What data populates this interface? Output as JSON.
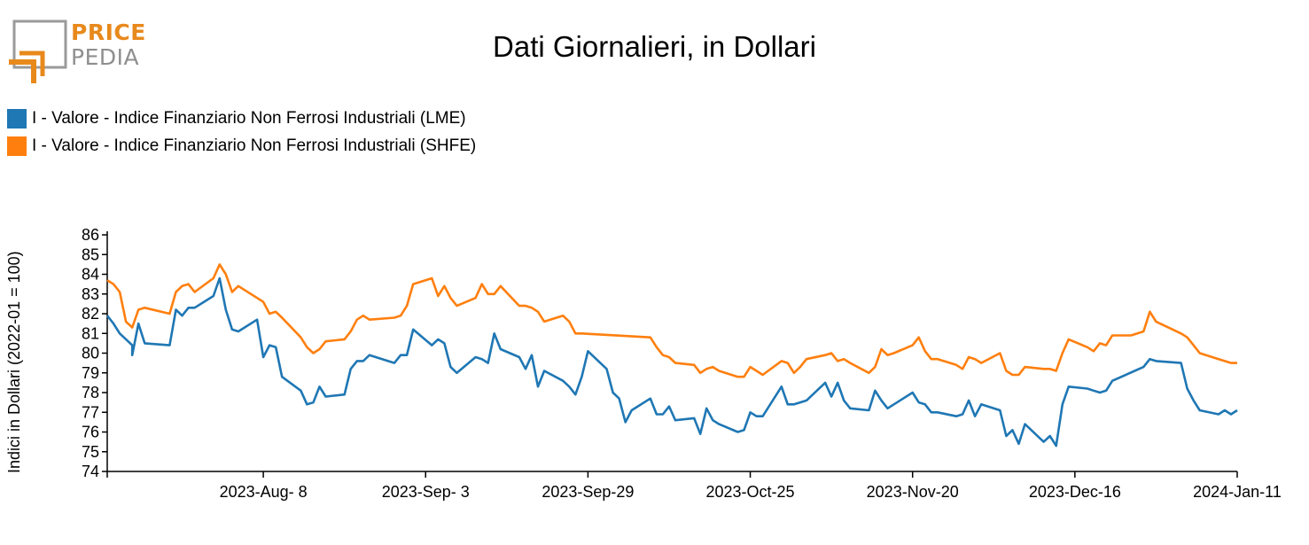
{
  "logo": {
    "word1": "PRICE",
    "word2": "PEDIA"
  },
  "colors": {
    "lme": "#1f77b4",
    "shfe": "#ff7f0e",
    "logo_orange": "#e8891c",
    "logo_gray": "#8f8f8f"
  },
  "chart_data": {
    "type": "line",
    "title": "Dati Giornalieri, in Dollari",
    "ylabel": "Indici in Dollari (2022-01 = 100)",
    "xlabel": "",
    "ylim": [
      74,
      86
    ],
    "yticks": [
      74,
      75,
      76,
      77,
      78,
      79,
      80,
      81,
      82,
      83,
      84,
      85,
      86
    ],
    "xlim": [
      "2023-07-14",
      "2024-01-11"
    ],
    "xticks": [
      {
        "date": "2023-08-08",
        "label": "2023-Aug- 8"
      },
      {
        "date": "2023-09-03",
        "label": "2023-Sep- 3"
      },
      {
        "date": "2023-09-29",
        "label": "2023-Sep-29"
      },
      {
        "date": "2023-10-25",
        "label": "2023-Oct-25"
      },
      {
        "date": "2023-11-20",
        "label": "2023-Nov-20"
      },
      {
        "date": "2023-12-16",
        "label": "2023-Dec-16"
      },
      {
        "date": "2024-01-11",
        "label": "2024-Jan-11"
      }
    ],
    "legend_position": "top-left",
    "series": [
      {
        "name": "I - Valore - Indice Finanziario Non Ferrosi Industriali (LME)",
        "color": "#1f77b4",
        "points": [
          [
            "2023-07-14",
            81.9
          ],
          [
            "2023-07-15",
            81.5
          ],
          [
            "2023-07-16",
            81.0
          ],
          [
            "2023-07-18",
            80.4
          ],
          [
            "2023-07-18",
            79.9
          ],
          [
            "2023-07-19",
            81.5
          ],
          [
            "2023-07-20",
            80.5
          ],
          [
            "2023-07-24",
            80.4
          ],
          [
            "2023-07-25",
            82.2
          ],
          [
            "2023-07-26",
            81.9
          ],
          [
            "2023-07-27",
            82.3
          ],
          [
            "2023-07-28",
            82.3
          ],
          [
            "2023-07-31",
            82.9
          ],
          [
            "2023-08-01",
            83.8
          ],
          [
            "2023-08-02",
            82.2
          ],
          [
            "2023-08-03",
            81.2
          ],
          [
            "2023-08-04",
            81.1
          ],
          [
            "2023-08-07",
            81.7
          ],
          [
            "2023-08-08",
            79.8
          ],
          [
            "2023-08-09",
            80.4
          ],
          [
            "2023-08-10",
            80.3
          ],
          [
            "2023-08-11",
            78.8
          ],
          [
            "2023-08-14",
            78.1
          ],
          [
            "2023-08-15",
            77.4
          ],
          [
            "2023-08-16",
            77.5
          ],
          [
            "2023-08-17",
            78.3
          ],
          [
            "2023-08-18",
            77.8
          ],
          [
            "2023-08-21",
            77.9
          ],
          [
            "2023-08-22",
            79.2
          ],
          [
            "2023-08-23",
            79.6
          ],
          [
            "2023-08-24",
            79.6
          ],
          [
            "2023-08-25",
            79.9
          ],
          [
            "2023-08-29",
            79.5
          ],
          [
            "2023-08-30",
            79.9
          ],
          [
            "2023-08-31",
            79.9
          ],
          [
            "2023-09-01",
            81.2
          ],
          [
            "2023-09-04",
            80.4
          ],
          [
            "2023-09-05",
            80.7
          ],
          [
            "2023-09-06",
            80.5
          ],
          [
            "2023-09-07",
            79.3
          ],
          [
            "2023-09-08",
            79.0
          ],
          [
            "2023-09-11",
            79.8
          ],
          [
            "2023-09-12",
            79.7
          ],
          [
            "2023-09-13",
            79.5
          ],
          [
            "2023-09-14",
            81.0
          ],
          [
            "2023-09-15",
            80.2
          ],
          [
            "2023-09-18",
            79.8
          ],
          [
            "2023-09-19",
            79.2
          ],
          [
            "2023-09-20",
            79.9
          ],
          [
            "2023-09-21",
            78.3
          ],
          [
            "2023-09-22",
            79.1
          ],
          [
            "2023-09-25",
            78.6
          ],
          [
            "2023-09-26",
            78.3
          ],
          [
            "2023-09-27",
            77.9
          ],
          [
            "2023-09-28",
            78.8
          ],
          [
            "2023-09-29",
            80.1
          ],
          [
            "2023-10-02",
            79.2
          ],
          [
            "2023-10-03",
            78.0
          ],
          [
            "2023-10-04",
            77.7
          ],
          [
            "2023-10-05",
            76.5
          ],
          [
            "2023-10-06",
            77.1
          ],
          [
            "2023-10-09",
            77.7
          ],
          [
            "2023-10-10",
            76.9
          ],
          [
            "2023-10-11",
            76.9
          ],
          [
            "2023-10-12",
            77.3
          ],
          [
            "2023-10-13",
            76.6
          ],
          [
            "2023-10-16",
            76.7
          ],
          [
            "2023-10-17",
            75.9
          ],
          [
            "2023-10-18",
            77.2
          ],
          [
            "2023-10-19",
            76.6
          ],
          [
            "2023-10-20",
            76.4
          ],
          [
            "2023-10-23",
            76.0
          ],
          [
            "2023-10-24",
            76.1
          ],
          [
            "2023-10-25",
            77.0
          ],
          [
            "2023-10-26",
            76.8
          ],
          [
            "2023-10-27",
            76.8
          ],
          [
            "2023-10-30",
            78.3
          ],
          [
            "2023-10-31",
            77.4
          ],
          [
            "2023-11-01",
            77.4
          ],
          [
            "2023-11-02",
            77.5
          ],
          [
            "2023-11-03",
            77.6
          ],
          [
            "2023-11-06",
            78.5
          ],
          [
            "2023-11-07",
            77.8
          ],
          [
            "2023-11-08",
            78.5
          ],
          [
            "2023-11-09",
            77.6
          ],
          [
            "2023-11-10",
            77.2
          ],
          [
            "2023-11-13",
            77.1
          ],
          [
            "2023-11-14",
            78.1
          ],
          [
            "2023-11-15",
            77.6
          ],
          [
            "2023-11-16",
            77.2
          ],
          [
            "2023-11-17",
            77.4
          ],
          [
            "2023-11-20",
            78.0
          ],
          [
            "2023-11-21",
            77.5
          ],
          [
            "2023-11-22",
            77.4
          ],
          [
            "2023-11-23",
            77.0
          ],
          [
            "2023-11-24",
            77.0
          ],
          [
            "2023-11-27",
            76.8
          ],
          [
            "2023-11-28",
            76.9
          ],
          [
            "2023-11-29",
            77.6
          ],
          [
            "2023-11-30",
            76.8
          ],
          [
            "2023-12-01",
            77.4
          ],
          [
            "2023-12-04",
            77.1
          ],
          [
            "2023-12-05",
            75.8
          ],
          [
            "2023-12-06",
            76.1
          ],
          [
            "2023-12-07",
            75.4
          ],
          [
            "2023-12-08",
            76.4
          ],
          [
            "2023-12-11",
            75.5
          ],
          [
            "2023-12-12",
            75.8
          ],
          [
            "2023-12-13",
            75.3
          ],
          [
            "2023-12-14",
            77.4
          ],
          [
            "2023-12-15",
            78.3
          ],
          [
            "2023-12-18",
            78.2
          ],
          [
            "2023-12-19",
            78.1
          ],
          [
            "2023-12-20",
            78.0
          ],
          [
            "2023-12-21",
            78.1
          ],
          [
            "2023-12-22",
            78.6
          ],
          [
            "2023-12-27",
            79.3
          ],
          [
            "2023-12-28",
            79.7
          ],
          [
            "2023-12-29",
            79.6
          ],
          [
            "2024-01-02",
            79.5
          ],
          [
            "2024-01-03",
            78.2
          ],
          [
            "2024-01-04",
            77.6
          ],
          [
            "2024-01-05",
            77.1
          ],
          [
            "2024-01-08",
            76.9
          ],
          [
            "2024-01-09",
            77.1
          ],
          [
            "2024-01-10",
            76.9
          ],
          [
            "2024-01-11",
            77.1
          ]
        ]
      },
      {
        "name": "I - Valore - Indice Finanziario Non Ferrosi Industriali (SHFE)",
        "color": "#ff7f0e",
        "points": [
          [
            "2023-07-14",
            83.7
          ],
          [
            "2023-07-15",
            83.5
          ],
          [
            "2023-07-16",
            83.1
          ],
          [
            "2023-07-17",
            81.6
          ],
          [
            "2023-07-18",
            81.3
          ],
          [
            "2023-07-19",
            82.2
          ],
          [
            "2023-07-20",
            82.3
          ],
          [
            "2023-07-24",
            82.0
          ],
          [
            "2023-07-25",
            83.1
          ],
          [
            "2023-07-26",
            83.4
          ],
          [
            "2023-07-27",
            83.5
          ],
          [
            "2023-07-28",
            83.1
          ],
          [
            "2023-07-31",
            83.8
          ],
          [
            "2023-08-01",
            84.5
          ],
          [
            "2023-08-02",
            84.0
          ],
          [
            "2023-08-03",
            83.1
          ],
          [
            "2023-08-04",
            83.4
          ],
          [
            "2023-08-07",
            82.8
          ],
          [
            "2023-08-08",
            82.6
          ],
          [
            "2023-08-09",
            82.0
          ],
          [
            "2023-08-10",
            82.1
          ],
          [
            "2023-08-11",
            81.8
          ],
          [
            "2023-08-14",
            80.8
          ],
          [
            "2023-08-15",
            80.3
          ],
          [
            "2023-08-16",
            80.0
          ],
          [
            "2023-08-17",
            80.2
          ],
          [
            "2023-08-18",
            80.6
          ],
          [
            "2023-08-21",
            80.7
          ],
          [
            "2023-08-22",
            81.1
          ],
          [
            "2023-08-23",
            81.7
          ],
          [
            "2023-08-24",
            81.9
          ],
          [
            "2023-08-25",
            81.7
          ],
          [
            "2023-08-29",
            81.8
          ],
          [
            "2023-08-30",
            81.9
          ],
          [
            "2023-08-31",
            82.4
          ],
          [
            "2023-09-01",
            83.5
          ],
          [
            "2023-09-04",
            83.8
          ],
          [
            "2023-09-05",
            82.9
          ],
          [
            "2023-09-06",
            83.4
          ],
          [
            "2023-09-07",
            82.8
          ],
          [
            "2023-09-08",
            82.4
          ],
          [
            "2023-09-11",
            82.8
          ],
          [
            "2023-09-12",
            83.5
          ],
          [
            "2023-09-13",
            83.0
          ],
          [
            "2023-09-14",
            83.0
          ],
          [
            "2023-09-15",
            83.4
          ],
          [
            "2023-09-18",
            82.4
          ],
          [
            "2023-09-19",
            82.4
          ],
          [
            "2023-09-20",
            82.3
          ],
          [
            "2023-09-21",
            82.1
          ],
          [
            "2023-09-22",
            81.6
          ],
          [
            "2023-09-25",
            81.9
          ],
          [
            "2023-09-26",
            81.6
          ],
          [
            "2023-09-27",
            81.0
          ],
          [
            "2023-09-28",
            81.0
          ],
          [
            "2023-10-09",
            80.8
          ],
          [
            "2023-10-10",
            80.3
          ],
          [
            "2023-10-11",
            79.9
          ],
          [
            "2023-10-12",
            79.8
          ],
          [
            "2023-10-13",
            79.5
          ],
          [
            "2023-10-16",
            79.4
          ],
          [
            "2023-10-17",
            79.0
          ],
          [
            "2023-10-18",
            79.2
          ],
          [
            "2023-10-19",
            79.3
          ],
          [
            "2023-10-20",
            79.1
          ],
          [
            "2023-10-23",
            78.8
          ],
          [
            "2023-10-24",
            78.8
          ],
          [
            "2023-10-25",
            79.3
          ],
          [
            "2023-10-26",
            79.1
          ],
          [
            "2023-10-27",
            78.9
          ],
          [
            "2023-10-30",
            79.6
          ],
          [
            "2023-10-31",
            79.5
          ],
          [
            "2023-11-01",
            79.0
          ],
          [
            "2023-11-02",
            79.3
          ],
          [
            "2023-11-03",
            79.7
          ],
          [
            "2023-11-06",
            79.9
          ],
          [
            "2023-11-07",
            80.0
          ],
          [
            "2023-11-08",
            79.6
          ],
          [
            "2023-11-09",
            79.7
          ],
          [
            "2023-11-10",
            79.5
          ],
          [
            "2023-11-13",
            79.0
          ],
          [
            "2023-11-14",
            79.3
          ],
          [
            "2023-11-15",
            80.2
          ],
          [
            "2023-11-16",
            79.9
          ],
          [
            "2023-11-17",
            80.0
          ],
          [
            "2023-11-20",
            80.4
          ],
          [
            "2023-11-21",
            80.8
          ],
          [
            "2023-11-22",
            80.1
          ],
          [
            "2023-11-23",
            79.7
          ],
          [
            "2023-11-24",
            79.7
          ],
          [
            "2023-11-27",
            79.4
          ],
          [
            "2023-11-28",
            79.2
          ],
          [
            "2023-11-29",
            79.8
          ],
          [
            "2023-11-30",
            79.7
          ],
          [
            "2023-12-01",
            79.5
          ],
          [
            "2023-12-04",
            80.0
          ],
          [
            "2023-12-05",
            79.1
          ],
          [
            "2023-12-06",
            78.9
          ],
          [
            "2023-12-07",
            78.9
          ],
          [
            "2023-12-08",
            79.3
          ],
          [
            "2023-12-11",
            79.2
          ],
          [
            "2023-12-12",
            79.2
          ],
          [
            "2023-12-13",
            79.1
          ],
          [
            "2023-12-14",
            80.0
          ],
          [
            "2023-12-15",
            80.7
          ],
          [
            "2023-12-18",
            80.3
          ],
          [
            "2023-12-19",
            80.1
          ],
          [
            "2023-12-20",
            80.5
          ],
          [
            "2023-12-21",
            80.4
          ],
          [
            "2023-12-22",
            80.9
          ],
          [
            "2023-12-25",
            80.9
          ],
          [
            "2023-12-26",
            81.0
          ],
          [
            "2023-12-27",
            81.1
          ],
          [
            "2023-12-28",
            82.1
          ],
          [
            "2023-12-29",
            81.6
          ],
          [
            "2024-01-02",
            81.0
          ],
          [
            "2024-01-03",
            80.8
          ],
          [
            "2024-01-04",
            80.4
          ],
          [
            "2024-01-05",
            80.0
          ],
          [
            "2024-01-08",
            79.7
          ],
          [
            "2024-01-09",
            79.6
          ],
          [
            "2024-01-10",
            79.5
          ],
          [
            "2024-01-11",
            79.5
          ]
        ]
      }
    ]
  }
}
